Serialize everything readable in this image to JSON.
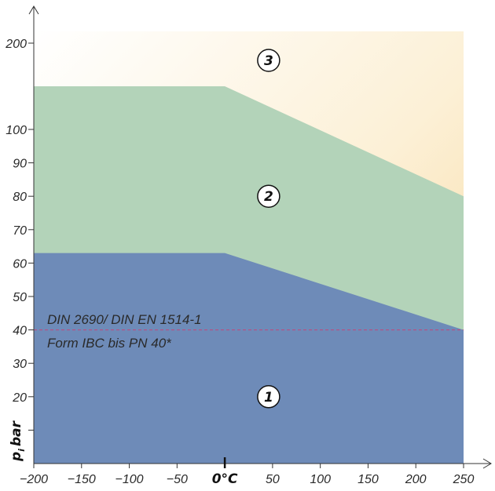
{
  "chart_data": {
    "type": "area",
    "title": "",
    "xlabel": "",
    "ylabel": "p_i bar",
    "ylabel_main": "p",
    "ylabel_sub": "i",
    "ylabel_unit": "bar",
    "x_ticks": [
      "-200",
      "-150",
      "-100",
      "-50",
      "0 °C",
      "50",
      "100",
      "150",
      "200",
      "250"
    ],
    "x_tick_values": [
      -200,
      -150,
      -100,
      -50,
      0,
      50,
      100,
      150,
      200,
      250
    ],
    "zero_label": "0°C",
    "y_ticks": [
      10,
      20,
      30,
      40,
      50,
      60,
      70,
      80,
      90,
      100,
      200
    ],
    "y_tick_labels": [
      "",
      "20",
      "30",
      "40",
      "50",
      "60",
      "70",
      "80",
      "90",
      "100",
      "200"
    ],
    "xlim": [
      -200,
      250
    ],
    "regions": [
      {
        "name": "1",
        "color": "#6e8bb8",
        "boundary": [
          {
            "x": -200,
            "y": 63
          },
          {
            "x": 0,
            "y": 63
          },
          {
            "x": 250,
            "y": 40
          }
        ],
        "label_pos": {
          "x": 50,
          "y": 20
        }
      },
      {
        "name": "2",
        "color": "#b3d3b9",
        "boundary": [
          {
            "x": -200,
            "y": 150
          },
          {
            "x": 0,
            "y": 150
          },
          {
            "x": 250,
            "y": 80
          }
        ],
        "label_pos": {
          "x": 50,
          "y": 80
        }
      },
      {
        "name": "3",
        "color": "#f7dfa8",
        "label_pos": {
          "x": 50,
          "y": 180
        }
      }
    ],
    "reference_line": {
      "y": 40,
      "color": "#c2467a",
      "style": "dashed"
    },
    "annotations": [
      "DIN 2690/ DIN EN 1514-1",
      "Form IBC bis PN 40*"
    ]
  }
}
